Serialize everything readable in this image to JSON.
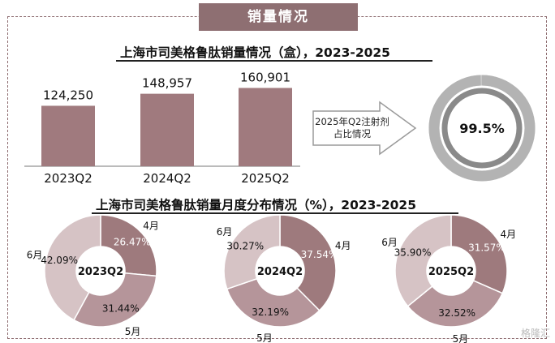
{
  "header": {
    "banner": "销量情况"
  },
  "bar_section": {
    "title": "上海市司美格鲁肽销量情况（盒），2023-2025",
    "annotation": "2025年Q2注射剂占比情况"
  },
  "donut_section": {
    "title": "上海市司美格鲁肽销量月度分布情况（%），2023-2025"
  },
  "watermark": "格隆汇",
  "colors": {
    "bar": "#a07a7e",
    "month4": "#9e7a7d",
    "month5": "#b5959a",
    "month6": "#d6c3c5",
    "gauge_outer": "#c8c8c8",
    "gauge_inner": "#8a8a8a",
    "banner": "#8e6f72",
    "frame": "#8c6a6e"
  },
  "chart_data": [
    {
      "type": "bar",
      "title": "上海市司美格鲁肽销量情况（盒），2023-2025",
      "categories": [
        "2023Q2",
        "2024Q2",
        "2025Q2"
      ],
      "values": [
        124250,
        148957,
        160901
      ],
      "value_labels": [
        "124,250",
        "148,957",
        "160,901"
      ],
      "ylim": [
        0,
        200000
      ]
    },
    {
      "type": "pie",
      "label": "99.5%",
      "value": 99.5
    },
    {
      "type": "pie",
      "center_label": "2023Q2",
      "categories": [
        "4月",
        "5月",
        "6月"
      ],
      "values": [
        26.47,
        31.44,
        42.09
      ],
      "value_labels": [
        "26.47%",
        "31.44%",
        "42.09%"
      ]
    },
    {
      "type": "pie",
      "center_label": "2024Q2",
      "categories": [
        "4月",
        "5月",
        "6月"
      ],
      "values": [
        37.54,
        32.19,
        30.27
      ],
      "value_labels": [
        "37.54%",
        "32.19%",
        "30.27%"
      ]
    },
    {
      "type": "pie",
      "center_label": "2025Q2",
      "categories": [
        "4月",
        "5月",
        "6月"
      ],
      "values": [
        31.57,
        32.52,
        35.9
      ],
      "value_labels": [
        "31.57%",
        "32.52%",
        "35.90%"
      ]
    }
  ]
}
